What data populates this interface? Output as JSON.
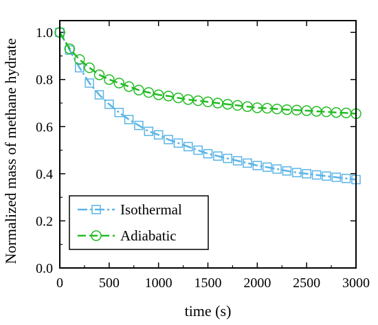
{
  "chart_data": {
    "type": "line",
    "xlabel": "time (s)",
    "ylabel": "Normalized mass of methane hydrate",
    "xlim": [
      0,
      3000
    ],
    "ylim": [
      0.0,
      1.05
    ],
    "xticks": [
      0,
      500,
      1000,
      1500,
      2000,
      2500,
      3000
    ],
    "yticks": [
      0.0,
      0.2,
      0.4,
      0.6,
      0.8,
      1.0
    ],
    "xtick_labels": [
      "0",
      "500",
      "1000",
      "1500",
      "2000",
      "2500",
      "3000"
    ],
    "ytick_labels": [
      "0.0",
      "0.2",
      "0.4",
      "0.6",
      "0.8",
      "1.0"
    ],
    "legend_position": "bottom-left",
    "grid": false,
    "series": [
      {
        "name": "Isothermal",
        "color": "#5ab4e6",
        "marker": "square",
        "x": [
          0,
          100,
          200,
          300,
          400,
          500,
          600,
          700,
          800,
          900,
          1000,
          1100,
          1200,
          1300,
          1400,
          1500,
          1600,
          1700,
          1800,
          1900,
          2000,
          2100,
          2200,
          2300,
          2400,
          2500,
          2600,
          2700,
          2800,
          2900,
          3000
        ],
        "y": [
          1.0,
          0.925,
          0.85,
          0.785,
          0.735,
          0.695,
          0.66,
          0.63,
          0.605,
          0.58,
          0.565,
          0.545,
          0.53,
          0.515,
          0.5,
          0.485,
          0.475,
          0.465,
          0.455,
          0.445,
          0.435,
          0.428,
          0.42,
          0.412,
          0.405,
          0.4,
          0.395,
          0.39,
          0.385,
          0.38,
          0.375
        ]
      },
      {
        "name": "Adiabatic",
        "color": "#22bb22",
        "marker": "circle",
        "x": [
          0,
          100,
          200,
          300,
          400,
          500,
          600,
          700,
          800,
          900,
          1000,
          1100,
          1200,
          1300,
          1400,
          1500,
          1600,
          1700,
          1800,
          1900,
          2000,
          2100,
          2200,
          2300,
          2400,
          2500,
          2600,
          2700,
          2800,
          2900,
          3000
        ],
        "y": [
          1.0,
          0.93,
          0.885,
          0.85,
          0.82,
          0.8,
          0.785,
          0.77,
          0.755,
          0.745,
          0.735,
          0.73,
          0.722,
          0.715,
          0.71,
          0.705,
          0.7,
          0.695,
          0.69,
          0.685,
          0.68,
          0.678,
          0.675,
          0.672,
          0.67,
          0.668,
          0.665,
          0.663,
          0.66,
          0.658,
          0.655
        ]
      }
    ]
  }
}
